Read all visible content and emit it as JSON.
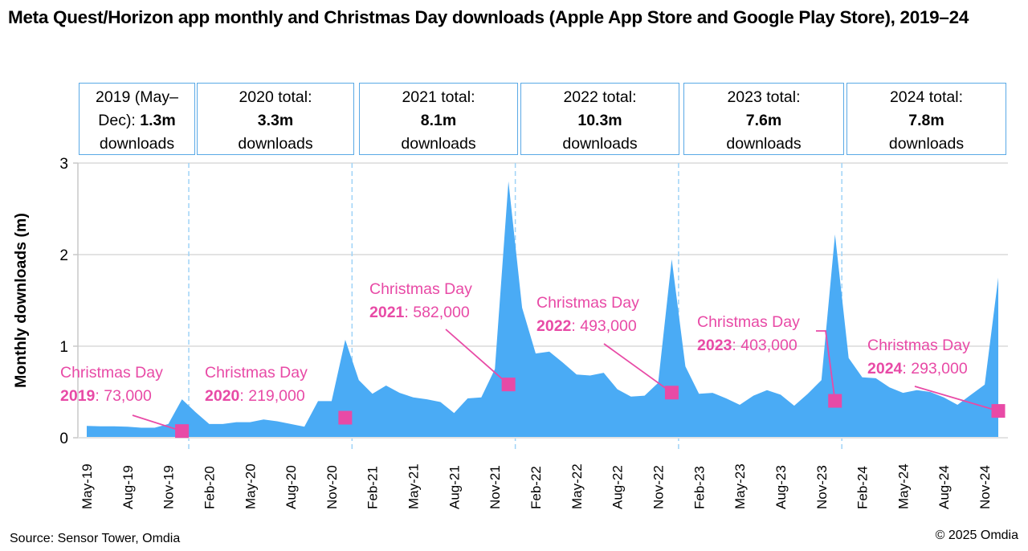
{
  "title": "Meta Quest/Horizon app monthly and Christmas Day downloads (Apple App Store and Google Play Store), 2019–24",
  "year_boxes": [
    {
      "line1": "2019 (May–",
      "line2_prefix": "Dec): ",
      "value": "1.3m",
      "line3": "downloads"
    },
    {
      "line1": "2020 total:",
      "line2_prefix": "",
      "value": "3.3m",
      "line3": "downloads"
    },
    {
      "line1": "2021 total:",
      "line2_prefix": "",
      "value": "8.1m",
      "line3": "downloads"
    },
    {
      "line1": "2022 total:",
      "line2_prefix": "",
      "value": "10.3m",
      "line3": "downloads"
    },
    {
      "line1": "2023 total:",
      "line2_prefix": "",
      "value": "7.6m",
      "line3": "downloads"
    },
    {
      "line1": "2024 total:",
      "line2_prefix": "",
      "value": "7.8m",
      "line3": "downloads"
    }
  ],
  "source": "Source: Sensor Tower, Omdia",
  "copyright": "© 2025 Omdia",
  "colors": {
    "area": "#4aabf5",
    "marker": "#e84aa6",
    "annotation": "#e84aa6",
    "divider": "#9fd3f7",
    "grid": "#e3e3e3",
    "box_border": "#5aa9e6"
  },
  "chart_data": {
    "type": "area",
    "title": "Meta Quest/Horizon app monthly and Christmas Day downloads (Apple App Store and Google Play Store), 2019–24",
    "xlabel": "",
    "ylabel": "Monthly downloads (m)",
    "ylim": [
      0,
      3
    ],
    "yticks": [
      0,
      1,
      2,
      3
    ],
    "grid": true,
    "x_start": "May-19",
    "x_tick_labels": [
      "May-19",
      "Aug-19",
      "Nov-19",
      "Feb-20",
      "May-20",
      "Aug-20",
      "Nov-20",
      "Feb-21",
      "May-21",
      "Aug-21",
      "Nov-21",
      "Feb-22",
      "May-22",
      "Aug-22",
      "Nov-22",
      "Feb-23",
      "May-23",
      "Aug-23",
      "Nov-23",
      "Feb-24",
      "May-24",
      "Aug-24",
      "Nov-24"
    ],
    "series": [
      {
        "name": "Monthly downloads (m)",
        "values": [
          0.13,
          0.125,
          0.125,
          0.12,
          0.11,
          0.11,
          0.15,
          0.42,
          0.28,
          0.15,
          0.15,
          0.17,
          0.17,
          0.2,
          0.18,
          0.15,
          0.12,
          0.4,
          0.4,
          1.07,
          0.63,
          0.48,
          0.57,
          0.49,
          0.44,
          0.42,
          0.39,
          0.27,
          0.43,
          0.44,
          0.75,
          2.8,
          1.42,
          0.92,
          0.94,
          0.82,
          0.69,
          0.68,
          0.71,
          0.53,
          0.45,
          0.46,
          0.6,
          1.95,
          0.78,
          0.48,
          0.49,
          0.43,
          0.36,
          0.46,
          0.52,
          0.47,
          0.35,
          0.48,
          0.63,
          2.22,
          0.87,
          0.66,
          0.65,
          0.55,
          0.49,
          0.52,
          0.5,
          0.44,
          0.36,
          0.47,
          0.58,
          1.75
        ]
      }
    ],
    "year_dividers_after": [
      "Dec-19",
      "Dec-20",
      "Dec-21",
      "Dec-22",
      "Dec-23"
    ],
    "christmas_day": [
      {
        "year": "2019",
        "month_index": 7,
        "value": 0.073,
        "label_line1": "Christmas Day",
        "label_year": "2019",
        "label_value": ": 73,000"
      },
      {
        "year": "2020",
        "month_index": 19,
        "value": 0.219,
        "label_line1": "Christmas Day",
        "label_year": "2020",
        "label_value": ": 219,000"
      },
      {
        "year": "2021",
        "month_index": 31,
        "value": 0.582,
        "label_line1": "Christmas Day",
        "label_year": "2021",
        "label_value": ": 582,000"
      },
      {
        "year": "2022",
        "month_index": 43,
        "value": 0.493,
        "label_line1": "Christmas Day",
        "label_year": "2022",
        "label_value": ": 493,000"
      },
      {
        "year": "2023",
        "month_index": 55,
        "value": 0.403,
        "label_line1": "Christmas Day",
        "label_year": "2023",
        "label_value": ": 403,000"
      },
      {
        "year": "2024",
        "month_index": 67,
        "value": 0.293,
        "label_line1": "Christmas Day",
        "label_year": "2024",
        "label_value": ": 293,000"
      }
    ]
  }
}
